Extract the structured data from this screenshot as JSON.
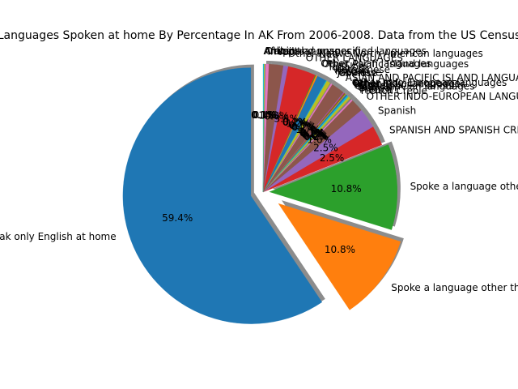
{
  "chart_data": {
    "type": "pie",
    "title": "Languages Spoken at home By Percentage In AK From 2006-2008. Data from the US Census",
    "autopct": "%1.1f%%",
    "shadow": true,
    "start_angle_deg": 90,
    "colors": [
      "#1f77b4",
      "#ff7f0e",
      "#2ca02c",
      "#d62728",
      "#9467bd",
      "#8c564b",
      "#e377c2",
      "#7f7f7f",
      "#bcbd22",
      "#17becf"
    ],
    "slices": [
      {
        "label": "Speak only English at home",
        "value": 58.8,
        "explode": 0.1
      },
      {
        "label": "Spoke a language other than English at home",
        "value": 10.7,
        "explode": 0.15
      },
      {
        "label": "Spoke a language other than English at home",
        "value": 10.7,
        "explode": 0.05
      },
      {
        "label": "SPANISH AND SPANISH CREOLE",
        "value": 2.5,
        "explode": 0
      },
      {
        "label": "Spanish",
        "value": 2.5,
        "explode": 0
      },
      {
        "label": "OTHER INDO-EUROPEAN LANGUAGES",
        "value": 1.6,
        "explode": 0
      },
      {
        "label": "French Creole",
        "value": 0.2,
        "explode": 0
      },
      {
        "label": "French",
        "value": 0.2,
        "explode": 0
      },
      {
        "label": "German",
        "value": 0.3,
        "explode": 0
      },
      {
        "label": "Scandinavian languages",
        "value": 0.2,
        "explode": 0
      },
      {
        "label": "Russian",
        "value": 0.2,
        "explode": 0
      },
      {
        "label": "Polish",
        "value": 0.1,
        "explode": 0
      },
      {
        "label": "Other Slavic languages",
        "value": 0.1,
        "explode": 0
      },
      {
        "label": "Other Indic languages",
        "value": 0.1,
        "explode": 0
      },
      {
        "label": "Other Indo-European languages",
        "value": 0.1,
        "explode": 0
      },
      {
        "label": "ASIAN AND PACIFIC ISLAND LANGUAGES",
        "value": 1.7,
        "explode": 0
      },
      {
        "label": "Chinese",
        "value": 0.2,
        "explode": 0
      },
      {
        "label": "Japanese",
        "value": 0.1,
        "explode": 0
      },
      {
        "label": "Korean",
        "value": 0.5,
        "explode": 0
      },
      {
        "label": "Vietnamese",
        "value": 0.1,
        "explode": 0
      },
      {
        "label": "Tagalog",
        "value": 1.2,
        "explode": 0
      },
      {
        "label": "Other Pacific Island languages",
        "value": 0.2,
        "explode": 0
      },
      {
        "label": "Other Asian languages",
        "value": 0.1,
        "explode": 0
      },
      {
        "label": "OTHER LANGUAGES",
        "value": 3.5,
        "explode": 0
      },
      {
        "label": "Other Native North American languages",
        "value": 0.6,
        "explode": 0
      },
      {
        "label": "Yupik",
        "value": 1.8,
        "explode": 0
      },
      {
        "label": "Inupik",
        "value": 0.4,
        "explode": 0
      },
      {
        "label": "Other and unspecified languages",
        "value": 0.1,
        "explode": 0
      },
      {
        "label": "African languages",
        "value": 0.1,
        "explode": 0
      },
      {
        "label": "Arabic",
        "value": 0.1,
        "explode": 0
      }
    ]
  }
}
